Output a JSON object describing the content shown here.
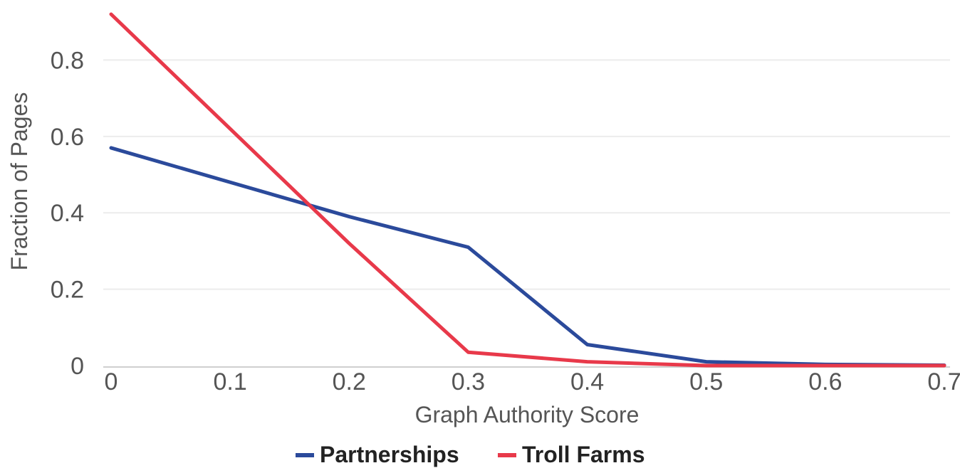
{
  "chart_data": {
    "type": "line",
    "title": "",
    "xlabel": "Graph Authority Score",
    "ylabel": "Fraction of Pages",
    "x": [
      0,
      0.1,
      0.2,
      0.3,
      0.4,
      0.5,
      0.6,
      0.7
    ],
    "x_tick_labels": [
      "0",
      "0.1",
      "0.2",
      "0.3",
      "0.4",
      "0.5",
      "0.6",
      "0.7"
    ],
    "y_tick_labels": [
      "0",
      "0.2",
      "0.4",
      "0.6",
      "0.8"
    ],
    "xlim": [
      0,
      0.7
    ],
    "ylim": [
      0,
      0.92
    ],
    "grid": true,
    "legend_position": "bottom",
    "series": [
      {
        "name": "Partnerships",
        "color": "#2b4a9b",
        "values": [
          0.57,
          0.48,
          0.39,
          0.31,
          0.055,
          0.01,
          0.003,
          0.001
        ]
      },
      {
        "name": "Troll Farms",
        "color": "#e8394a",
        "values": [
          0.92,
          0.62,
          0.32,
          0.035,
          0.01,
          0.0,
          0.0,
          0.0
        ]
      }
    ]
  }
}
